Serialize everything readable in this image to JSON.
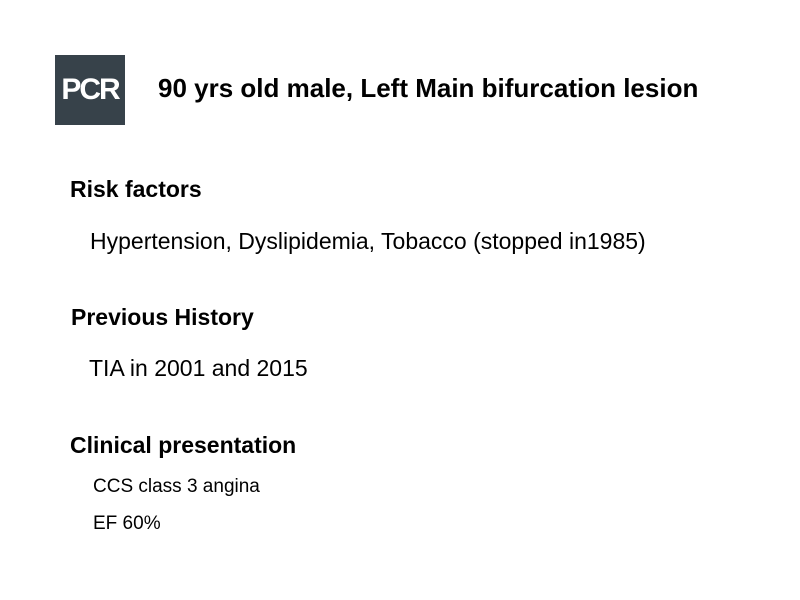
{
  "logo": "PCR",
  "title": "90 yrs old male, Left Main bifurcation lesion",
  "sections": [
    {
      "heading": "Risk factors",
      "items": [
        "Hypertension, Dyslipidemia, Tobacco (stopped in1985)"
      ]
    },
    {
      "heading": "Previous History",
      "items": [
        "TIA in 2001 and 2015"
      ]
    },
    {
      "heading": "Clinical presentation",
      "items": [
        "CCS class 3 angina",
        "EF 60%"
      ]
    }
  ]
}
